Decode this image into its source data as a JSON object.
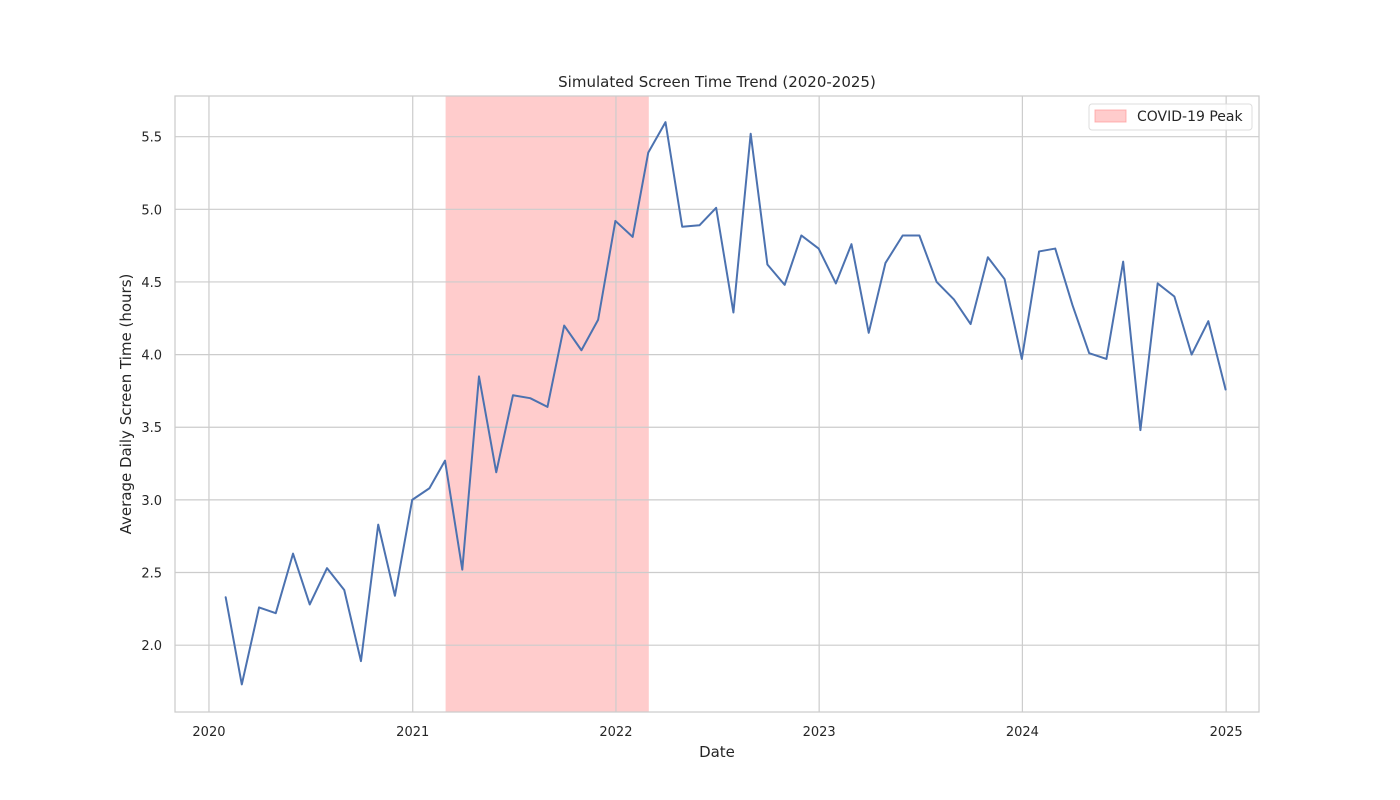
{
  "chart_data": {
    "type": "line",
    "title": "Simulated Screen Time Trend (2020-2025)",
    "xlabel": "Date",
    "ylabel": "Average Daily Screen Time (hours)",
    "xlim": [
      "2019-11-01",
      "2025-03-01"
    ],
    "ylim": [
      1.54,
      5.78
    ],
    "x_ticks": [
      "2020-01-01",
      "2021-01-01",
      "2022-01-01",
      "2023-01-01",
      "2024-01-01",
      "2025-01-01"
    ],
    "x_tick_labels": [
      "2020",
      "2021",
      "2022",
      "2023",
      "2024",
      "2025"
    ],
    "y_ticks": [
      2.0,
      2.5,
      3.0,
      3.5,
      4.0,
      4.5,
      5.0,
      5.5
    ],
    "y_tick_labels": [
      "2.0",
      "2.5",
      "3.0",
      "3.5",
      "4.0",
      "4.5",
      "5.0",
      "5.5"
    ],
    "grid": true,
    "legend_position": "top-right",
    "shaded_region": {
      "label": "COVID-19 Peak",
      "start": "2021-03-01",
      "end": "2022-03-01",
      "color": "#ff9999"
    },
    "series": [
      {
        "color": "#4c72b0",
        "x": [
          "2020-01-31",
          "2020-02-29",
          "2020-03-31",
          "2020-04-30",
          "2020-05-31",
          "2020-06-30",
          "2020-07-31",
          "2020-08-31",
          "2020-09-30",
          "2020-10-31",
          "2020-11-30",
          "2020-12-31",
          "2021-01-31",
          "2021-02-28",
          "2021-03-31",
          "2021-04-30",
          "2021-05-31",
          "2021-06-30",
          "2021-07-31",
          "2021-08-31",
          "2021-09-30",
          "2021-10-31",
          "2021-11-30",
          "2021-12-31",
          "2022-01-31",
          "2022-02-28",
          "2022-03-31",
          "2022-04-30",
          "2022-05-31",
          "2022-06-30",
          "2022-07-31",
          "2022-08-31",
          "2022-09-30",
          "2022-10-31",
          "2022-11-30",
          "2022-12-31",
          "2023-01-31",
          "2023-02-28",
          "2023-03-31",
          "2023-04-30",
          "2023-05-31",
          "2023-06-30",
          "2023-07-31",
          "2023-08-31",
          "2023-09-30",
          "2023-10-31",
          "2023-11-30",
          "2023-12-31",
          "2024-01-31",
          "2024-02-29",
          "2024-03-31",
          "2024-04-30",
          "2024-05-31",
          "2024-06-30",
          "2024-07-31",
          "2024-08-31",
          "2024-09-30",
          "2024-10-31",
          "2024-11-30",
          "2024-12-31"
        ],
        "values": [
          2.33,
          1.73,
          2.26,
          2.22,
          2.63,
          2.28,
          2.53,
          2.38,
          1.89,
          2.83,
          2.34,
          3.0,
          3.08,
          3.27,
          2.52,
          3.85,
          3.19,
          3.72,
          3.7,
          3.64,
          4.2,
          4.03,
          4.24,
          4.92,
          4.81,
          5.39,
          5.6,
          4.88,
          4.89,
          5.01,
          4.29,
          5.52,
          4.62,
          4.48,
          4.82,
          4.73,
          4.49,
          4.76,
          4.15,
          4.63,
          4.82,
          4.82,
          4.5,
          4.38,
          4.21,
          4.67,
          4.52,
          3.97,
          4.71,
          4.73,
          4.34,
          4.01,
          3.97,
          4.64,
          3.48,
          4.49,
          4.4,
          4.0,
          4.23,
          3.76
        ]
      }
    ]
  }
}
